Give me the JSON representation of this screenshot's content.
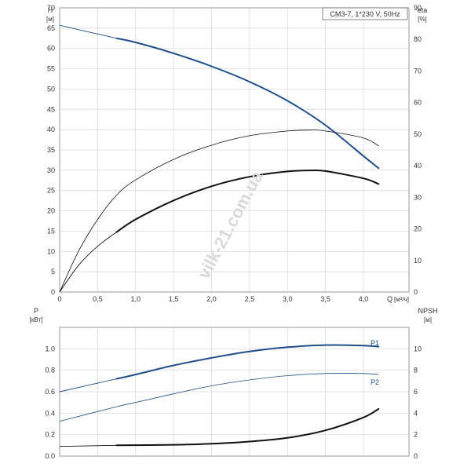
{
  "chart_data": [
    {
      "type": "line",
      "title": "CM3-7, 1*230 V, 50Hz",
      "xlabel": "Q",
      "xunit": "[м³/ч]",
      "ylabel": "H",
      "yunit": "[м]",
      "y2label": "eta",
      "y2unit": "[%]",
      "xlim": [
        0,
        4.6
      ],
      "ylim": [
        0,
        70
      ],
      "y2lim": [
        0,
        90
      ],
      "x_ticks": [
        "0",
        "0,5",
        "1,0",
        "1,5",
        "2,0",
        "2,5",
        "3,0",
        "3,5",
        "4,0"
      ],
      "y_ticks": [
        "0",
        "5",
        "10",
        "15",
        "20",
        "25",
        "30",
        "35",
        "40",
        "45",
        "50",
        "55",
        "60",
        "65",
        "70"
      ],
      "y2_ticks": [
        "0",
        "10",
        "20",
        "30",
        "40",
        "50",
        "60",
        "70",
        "80",
        "90"
      ],
      "grid": true,
      "series": [
        {
          "axis": "H",
          "color": "#1f4e8c",
          "x": [
            0,
            0.75,
            1.0,
            1.5,
            2.0,
            2.5,
            3.0,
            3.5,
            4.0,
            4.2
          ],
          "y": [
            65.7,
            62.5,
            61.5,
            58.8,
            55.6,
            51.8,
            47.1,
            41.1,
            33.5,
            30.5
          ]
        },
        {
          "axis": "eta",
          "color": "#111111",
          "x": [
            0,
            0.25,
            0.5,
            0.75,
            1.0,
            1.5,
            2.0,
            2.5,
            3.0,
            3.3,
            3.5,
            4.0,
            4.2
          ],
          "y": [
            0,
            13,
            23,
            30.7,
            35.5,
            42,
            46.5,
            49.5,
            51,
            51.3,
            51,
            48.8,
            46.3
          ]
        },
        {
          "axis": "eta",
          "color": "#111111",
          "x": [
            0,
            0.25,
            0.5,
            0.75,
            1.0,
            1.5,
            2.0,
            2.5,
            3.0,
            3.3,
            3.5,
            4.0,
            4.2
          ],
          "y": [
            0,
            8.5,
            14.5,
            19,
            23,
            29,
            33.5,
            36.5,
            38.2,
            38.5,
            38.3,
            36,
            34.2
          ]
        }
      ]
    },
    {
      "type": "line",
      "ylabel": "P",
      "yunit": "[кВт]",
      "y2label": "NPSH",
      "y2unit": "[м]",
      "xlim": [
        0,
        4.6
      ],
      "ylim": [
        0,
        1.2
      ],
      "y2lim": [
        0,
        12
      ],
      "y_ticks": [
        "0.0",
        "0.2",
        "0.4",
        "0.6",
        "0.8",
        "1.0"
      ],
      "y2_ticks": [
        "0",
        "2",
        "4",
        "6",
        "8",
        "10"
      ],
      "grid": true,
      "series": [
        {
          "name": "P1",
          "axis": "P",
          "color": "#1f4e8c",
          "x": [
            0,
            0.75,
            1.0,
            1.5,
            2.0,
            2.5,
            3.0,
            3.5,
            4.0,
            4.2
          ],
          "y": [
            0.6,
            0.72,
            0.76,
            0.845,
            0.915,
            0.975,
            1.015,
            1.035,
            1.03,
            1.02
          ]
        },
        {
          "name": "P2",
          "axis": "P",
          "color": "#1f4e8c",
          "x": [
            0,
            0.75,
            1.0,
            1.5,
            2.0,
            2.5,
            3.0,
            3.5,
            4.0,
            4.2
          ],
          "y": [
            0.325,
            0.46,
            0.5,
            0.58,
            0.655,
            0.71,
            0.75,
            0.77,
            0.77,
            0.76
          ]
        },
        {
          "axis": "NPSH",
          "color": "#111111",
          "x": [
            0,
            0.75,
            1.5,
            2.0,
            2.5,
            3.0,
            3.5,
            4.0,
            4.2
          ],
          "y": [
            0.9,
            1.0,
            1.05,
            1.15,
            1.35,
            1.7,
            2.4,
            3.6,
            4.4
          ]
        }
      ]
    }
  ],
  "watermark": "vilk-21.com.ua"
}
